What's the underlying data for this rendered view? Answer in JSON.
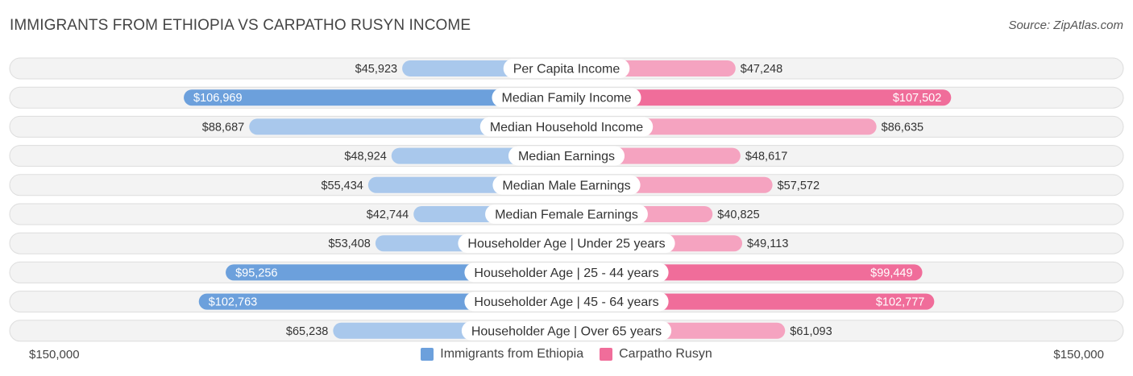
{
  "header": {
    "title": "IMMIGRANTS FROM ETHIOPIA VS CARPATHO RUSYN INCOME",
    "source": "Source: ZipAtlas.com"
  },
  "axis": {
    "left_label": "$150,000",
    "right_label": "$150,000"
  },
  "legend": {
    "left": {
      "label": "Immigrants from Ethiopia",
      "color": "#6ca0dc"
    },
    "right": {
      "label": "Carpatho Rusyn",
      "color": "#f06d9a"
    }
  },
  "chart_data": {
    "type": "bar",
    "orientation": "diverging-horizontal",
    "axis_max": 150000,
    "categories": [
      "Per Capita Income",
      "Median Family Income",
      "Median Household Income",
      "Median Earnings",
      "Median Male Earnings",
      "Median Female Earnings",
      "Householder Age | Under 25 years",
      "Householder Age | 25 - 44 years",
      "Householder Age | 45 - 64 years",
      "Householder Age | Over 65 years"
    ],
    "series": [
      {
        "name": "Immigrants from Ethiopia",
        "values": [
          45923,
          106969,
          88687,
          48924,
          55434,
          42744,
          53408,
          95256,
          102763,
          65238
        ],
        "labels": [
          "$45,923",
          "$106,969",
          "$88,687",
          "$48,924",
          "$55,434",
          "$42,744",
          "$53,408",
          "$95,256",
          "$102,763",
          "$65,238"
        ]
      },
      {
        "name": "Carpatho Rusyn",
        "values": [
          47248,
          107502,
          86635,
          48617,
          57572,
          40825,
          49113,
          99449,
          102777,
          61093
        ],
        "labels": [
          "$47,248",
          "$107,502",
          "$86,635",
          "$48,617",
          "$57,572",
          "$40,825",
          "$49,113",
          "$99,449",
          "$102,777",
          "$61,093"
        ]
      }
    ],
    "colors": {
      "left_strong": "#6ca0dc",
      "left_light": "#a9c8ec",
      "right_strong": "#f06d9a",
      "right_light": "#f5a3c0"
    }
  }
}
